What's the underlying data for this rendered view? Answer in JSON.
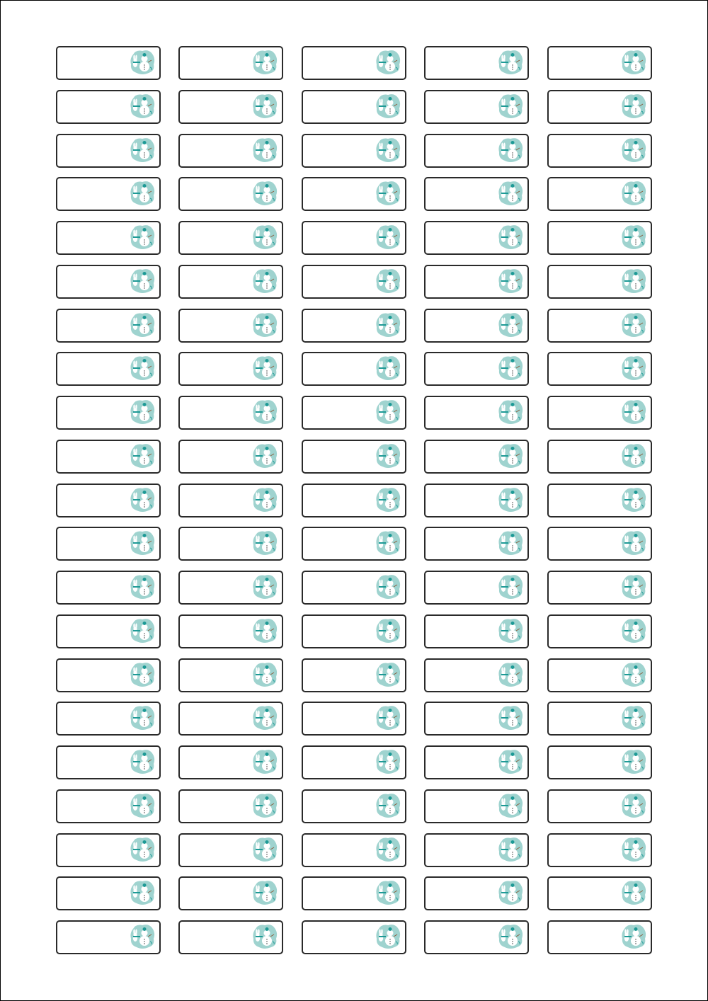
{
  "sheet": {
    "columns": 5,
    "rows": 21,
    "label_icon": "snowman-bunny-icon",
    "colors": {
      "label_border": "#2a2a2a",
      "icon_background": "#9fd3cf",
      "icon_accent": "#1e9a96"
    }
  }
}
